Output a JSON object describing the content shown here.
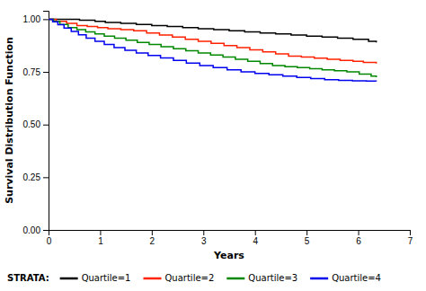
{
  "chart_data": {
    "type": "step",
    "xlabel": "Years",
    "ylabel": "Survival Distribution Function",
    "xlim": [
      0,
      7
    ],
    "ylim": [
      0.0,
      1.04
    ],
    "xticks": [
      0,
      1,
      2,
      3,
      4,
      5,
      6,
      7
    ],
    "yticks": [
      {
        "value": 0.0,
        "label": "0.00"
      },
      {
        "value": 0.25,
        "label": "0.25"
      },
      {
        "value": 0.5,
        "label": "0.50"
      },
      {
        "value": 0.75,
        "label": "0.75"
      },
      {
        "value": 1.0,
        "label": "1.00"
      }
    ],
    "grid": false,
    "legend": "bottom",
    "legend_title": "STRATA:",
    "series": [
      {
        "name": "Quartile=1",
        "color": "#000000",
        "x": [
          0,
          0.3,
          0.6,
          0.9,
          1.1,
          1.4,
          1.7,
          2.0,
          2.3,
          2.6,
          2.9,
          3.2,
          3.5,
          3.8,
          4.1,
          4.4,
          4.7,
          5.0,
          5.3,
          5.6,
          5.9,
          6.2,
          6.35
        ],
        "values": [
          1.0,
          1.0,
          0.995,
          0.99,
          0.985,
          0.98,
          0.975,
          0.97,
          0.965,
          0.96,
          0.955,
          0.95,
          0.945,
          0.94,
          0.935,
          0.93,
          0.925,
          0.92,
          0.915,
          0.91,
          0.905,
          0.895,
          0.89
        ]
      },
      {
        "name": "Quartile=2",
        "color": "#ff2200",
        "x": [
          0,
          0.15,
          0.35,
          0.55,
          0.75,
          0.95,
          1.15,
          1.4,
          1.65,
          1.9,
          2.15,
          2.4,
          2.65,
          2.9,
          3.15,
          3.4,
          3.65,
          3.9,
          4.15,
          4.4,
          4.65,
          4.9,
          5.15,
          5.4,
          5.65,
          5.9,
          6.1,
          6.35
        ],
        "values": [
          1.0,
          0.99,
          0.98,
          0.97,
          0.965,
          0.96,
          0.955,
          0.95,
          0.945,
          0.935,
          0.925,
          0.915,
          0.905,
          0.895,
          0.885,
          0.875,
          0.865,
          0.855,
          0.845,
          0.835,
          0.825,
          0.82,
          0.815,
          0.81,
          0.805,
          0.8,
          0.795,
          0.79
        ]
      },
      {
        "name": "Quartile=3",
        "color": "#008800",
        "x": [
          0,
          0.1,
          0.22,
          0.38,
          0.55,
          0.72,
          0.9,
          1.08,
          1.28,
          1.5,
          1.72,
          1.95,
          2.18,
          2.42,
          2.66,
          2.9,
          3.14,
          3.38,
          3.62,
          3.86,
          4.1,
          4.34,
          4.58,
          4.82,
          5.06,
          5.3,
          5.54,
          5.78,
          6.02,
          6.25,
          6.35
        ],
        "values": [
          1.0,
          0.99,
          0.975,
          0.96,
          0.95,
          0.94,
          0.93,
          0.92,
          0.91,
          0.9,
          0.89,
          0.88,
          0.87,
          0.86,
          0.85,
          0.84,
          0.83,
          0.82,
          0.81,
          0.8,
          0.79,
          0.78,
          0.775,
          0.77,
          0.765,
          0.76,
          0.755,
          0.75,
          0.74,
          0.73,
          0.725
        ]
      },
      {
        "name": "Quartile=4",
        "color": "#0000ee",
        "x": [
          0,
          0.08,
          0.18,
          0.3,
          0.44,
          0.58,
          0.73,
          0.9,
          1.08,
          1.27,
          1.48,
          1.7,
          1.93,
          2.17,
          2.42,
          2.67,
          2.93,
          3.19,
          3.46,
          3.73,
          4.0,
          4.27,
          4.54,
          4.81,
          5.08,
          5.35,
          5.62,
          5.89,
          6.16,
          6.35
        ],
        "values": [
          1.0,
          0.988,
          0.974,
          0.958,
          0.942,
          0.926,
          0.91,
          0.895,
          0.88,
          0.865,
          0.852,
          0.84,
          0.828,
          0.816,
          0.804,
          0.792,
          0.78,
          0.77,
          0.76,
          0.75,
          0.743,
          0.736,
          0.73,
          0.724,
          0.718,
          0.713,
          0.71,
          0.708,
          0.706,
          0.705
        ]
      }
    ]
  }
}
